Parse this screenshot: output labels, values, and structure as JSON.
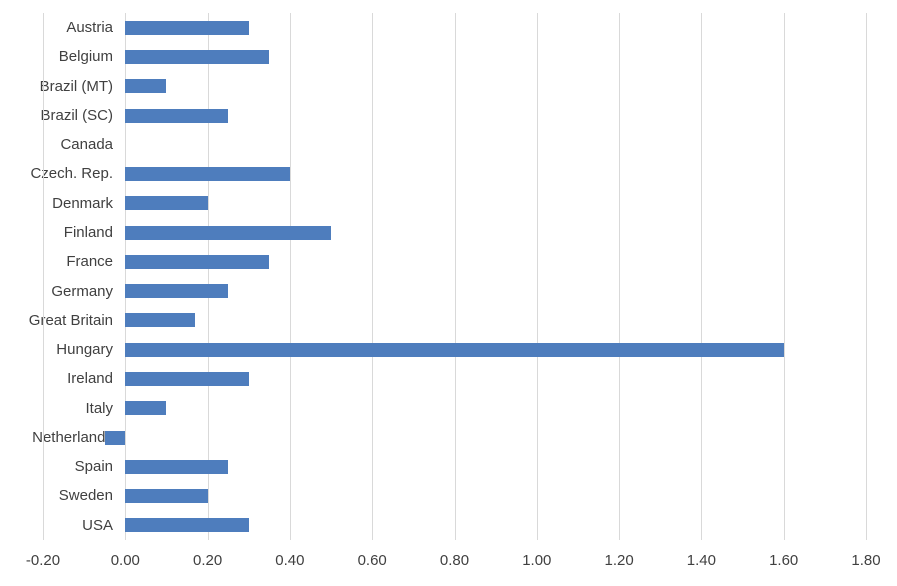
{
  "chart_data": {
    "type": "bar",
    "orientation": "horizontal",
    "title": "",
    "xlabel": "",
    "ylabel": "",
    "legend": "none",
    "grid": "vertical-only",
    "xlim": [
      -0.2,
      1.8
    ],
    "xtick_step": 0.2,
    "xtick_labels": [
      "-0.20",
      "0.00",
      "0.20",
      "0.40",
      "0.60",
      "0.80",
      "1.00",
      "1.20",
      "1.40",
      "1.60",
      "1.80"
    ],
    "categories": [
      "Austria",
      "Belgium",
      "Brazil (MT)",
      "Brazil (SC)",
      "Canada",
      "Czech. Rep.",
      "Denmark",
      "Finland",
      "France",
      "Germany",
      "Great Britain",
      "Hungary",
      "Ireland",
      "Italy",
      "Netherlands",
      "Spain",
      "Sweden",
      "USA"
    ],
    "values": [
      0.3,
      0.35,
      0.1,
      0.25,
      0.0,
      0.4,
      0.2,
      0.5,
      0.35,
      0.25,
      0.17,
      1.6,
      0.3,
      0.1,
      -0.05,
      0.25,
      0.2,
      0.3
    ],
    "colors": {
      "bar": "#4e7dbd",
      "gridline": "#d9d9d9",
      "label": "#404040",
      "background": "#ffffff"
    }
  }
}
